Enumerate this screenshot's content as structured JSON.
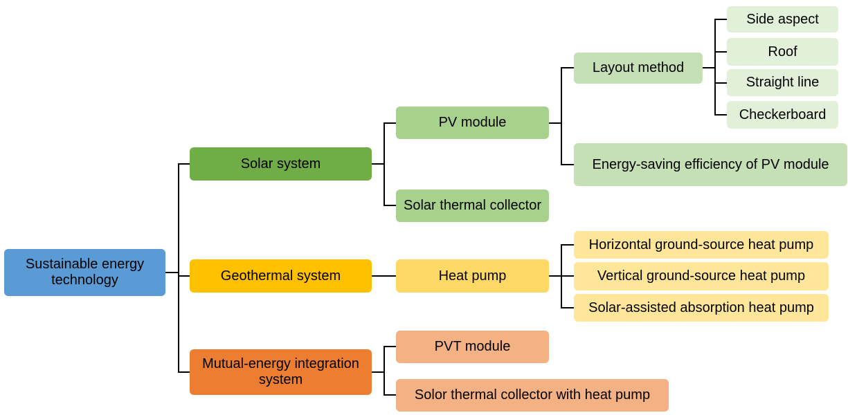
{
  "colors": {
    "root": "#5b9bd5",
    "solar": "#70ad47",
    "solar_light": "#a9d18e",
    "solar_lighter": "#c5e0b4",
    "solar_lightest": "#e2f0d9",
    "geo": "#ffc000",
    "geo_light": "#ffd966",
    "geo_lighter": "#ffe699",
    "mutual": "#ed7d31",
    "mutual_light": "#f4b183",
    "connector": "#000000"
  },
  "nodes": {
    "root": "Sustainable energy technology",
    "solar_system": "Solar system",
    "geothermal_system": "Geothermal system",
    "mutual_energy": "Mutual-energy integration system",
    "pv_module": "PV module",
    "solar_thermal_collector": "Solar thermal collector",
    "heat_pump": "Heat pump",
    "pvt_module": "PVT module",
    "solor_thermal_hp": "Solor thermal collector with heat pump",
    "layout_method": "Layout method",
    "pv_efficiency": "Energy-saving efficiency of PV module",
    "horizontal_gshp": "Horizontal ground-source heat pump",
    "vertical_gshp": "Vertical ground-source heat pump",
    "solar_absorption_hp": "Solar-assisted absorption heat pump",
    "side_aspect": "Side aspect",
    "roof": "Roof",
    "straight_line": "Straight line",
    "checkerboard": "Checkerboard"
  }
}
